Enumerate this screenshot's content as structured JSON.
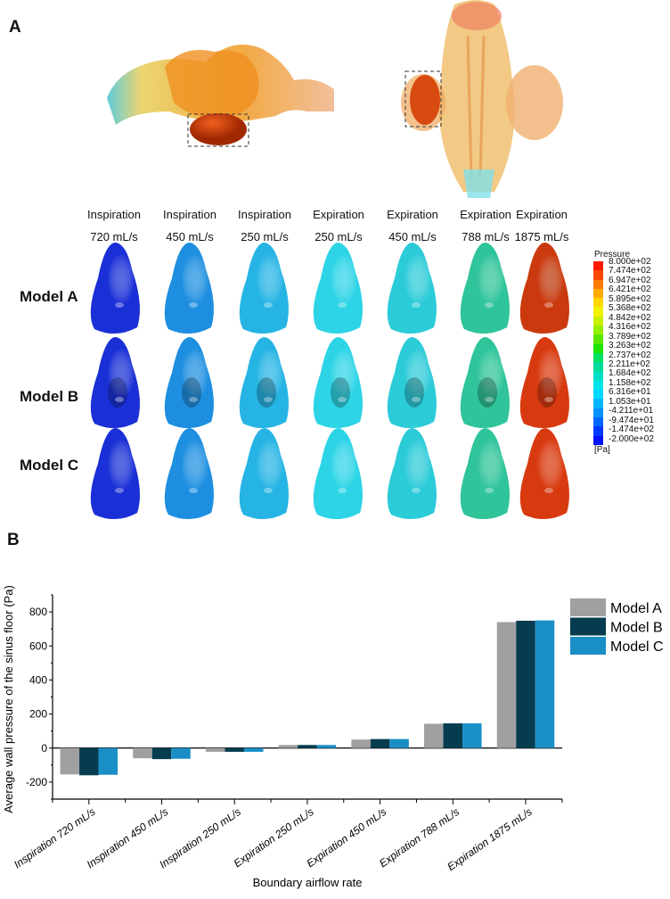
{
  "panel_a": {
    "label": "A",
    "columns": [
      {
        "line1": "Inspiration",
        "line2": "720 mL/s"
      },
      {
        "line1": "Inspiration",
        "line2": "450 mL/s"
      },
      {
        "line1": "Inspiration",
        "line2": "250 mL/s"
      },
      {
        "line1": "Expiration",
        "line2": "250 mL/s"
      },
      {
        "line1": "Expiration",
        "line2": "450 mL/s"
      },
      {
        "line1": "Expiration",
        "line2": "788 mL/s"
      },
      {
        "line1": "Expiration",
        "line2": "1875 mL/s"
      }
    ],
    "rows": [
      "Model A",
      "Model B",
      "Model C"
    ],
    "column_colors": [
      "#1a30d6",
      "#1e8fe0",
      "#26b4e4",
      "#2cd4e6",
      "#2ccbd8",
      "#2fc49a",
      "#d83a10"
    ],
    "colorbar": {
      "title": "Pressure",
      "unit": "[Pa]",
      "ticks": [
        "8.000e+02",
        "7.474e+02",
        "6.947e+02",
        "6.421e+02",
        "5.895e+02",
        "5.368e+02",
        "4.842e+02",
        "4.316e+02",
        "3.789e+02",
        "3.263e+02",
        "2.737e+02",
        "2.211e+02",
        "1.684e+02",
        "1.158e+02",
        "6.316e+01",
        "1.053e+01",
        "-4.211e+01",
        "-9.474e+01",
        "-1.474e+02",
        "-2.000e+02"
      ],
      "colors": [
        "#ff1a00",
        "#ff4800",
        "#ff7a00",
        "#ffaa00",
        "#ffd600",
        "#f2f200",
        "#c8f000",
        "#96ee00",
        "#5ae800",
        "#1ee400",
        "#00e060",
        "#00dc9a",
        "#00e0c8",
        "#00e6ea",
        "#00d8ff",
        "#00b6ff",
        "#0090ff",
        "#0066ff",
        "#0038ff",
        "#0010ff"
      ]
    }
  },
  "panel_b": {
    "label": "B"
  },
  "chart_data": {
    "type": "bar",
    "title": "",
    "xlabel": "Boundary airflow rate",
    "ylabel": "Average wall pressure of the sinus floor (Pa)",
    "ylim": [
      -300,
      900
    ],
    "yticks": [
      -200,
      0,
      200,
      400,
      600,
      800
    ],
    "categories": [
      "Inspiration 720 mL/s",
      "Inspiration 450 mL/s",
      "Inspiration 250 mL/s",
      "Expiration 250 mL/s",
      "Expiration 450 mL/s",
      "Expiration 788 mL/s",
      "Expiration 1875 mL/s"
    ],
    "series": [
      {
        "name": "Model A",
        "color": "#a0a0a0",
        "values": [
          -155,
          -60,
          -22,
          18,
          50,
          143,
          740
        ]
      },
      {
        "name": "Model B",
        "color": "#063c50",
        "values": [
          -160,
          -65,
          -22,
          18,
          53,
          145,
          748
        ]
      },
      {
        "name": "Model C",
        "color": "#1a8fc6",
        "values": [
          -157,
          -63,
          -22,
          18,
          53,
          145,
          750
        ]
      }
    ],
    "legend": "right",
    "grid": false
  }
}
